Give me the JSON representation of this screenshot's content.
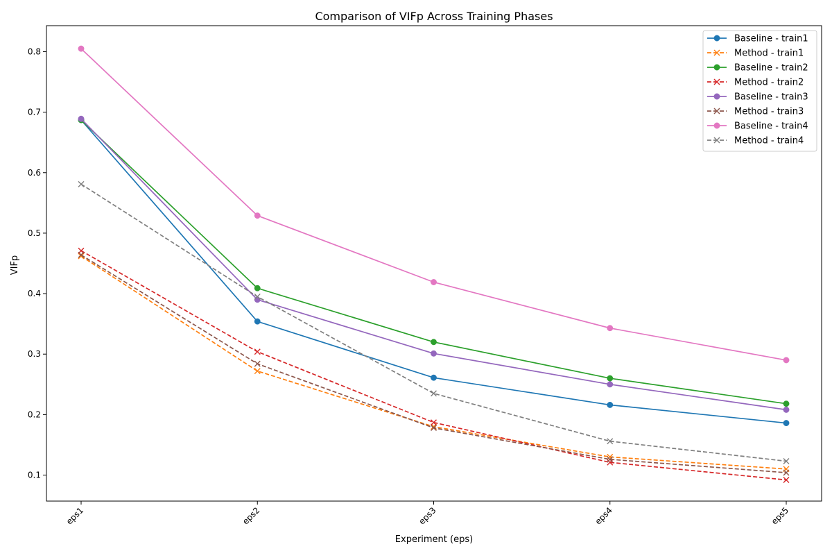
{
  "chart_data": {
    "type": "line",
    "title": "Comparison of VIFp Across Training Phases",
    "xlabel": "Experiment (eps)",
    "ylabel": "VIFp",
    "categories": [
      "eps1",
      "eps2",
      "eps3",
      "eps4",
      "eps5"
    ],
    "ylim": [
      0.057,
      0.843
    ],
    "yticks": [
      0.1,
      0.2,
      0.3,
      0.4,
      0.5,
      0.6,
      0.7,
      0.8
    ],
    "grid": false,
    "legend_position": "top-right",
    "series": [
      {
        "name": "Baseline - train1",
        "color": "#1f77b4",
        "style": "solid",
        "marker": "circle",
        "values": [
          0.687,
          0.354,
          0.261,
          0.216,
          0.186
        ]
      },
      {
        "name": "Method - train1",
        "color": "#ff7f0e",
        "style": "dashed",
        "marker": "x",
        "values": [
          0.462,
          0.272,
          0.18,
          0.13,
          0.11
        ]
      },
      {
        "name": "Baseline - train2",
        "color": "#2ca02c",
        "style": "solid",
        "marker": "circle",
        "values": [
          0.687,
          0.409,
          0.32,
          0.26,
          0.218
        ]
      },
      {
        "name": "Method - train2",
        "color": "#d62728",
        "style": "dashed",
        "marker": "x",
        "values": [
          0.471,
          0.304,
          0.187,
          0.121,
          0.092
        ]
      },
      {
        "name": "Baseline - train3",
        "color": "#9467bd",
        "style": "solid",
        "marker": "circle",
        "values": [
          0.689,
          0.39,
          0.301,
          0.25,
          0.208
        ]
      },
      {
        "name": "Method - train3",
        "color": "#8c564b",
        "style": "dashed",
        "marker": "x",
        "values": [
          0.464,
          0.284,
          0.178,
          0.126,
          0.104
        ]
      },
      {
        "name": "Baseline - train4",
        "color": "#e377c2",
        "style": "solid",
        "marker": "circle",
        "values": [
          0.805,
          0.529,
          0.419,
          0.343,
          0.29
        ]
      },
      {
        "name": "Method - train4",
        "color": "#7f7f7f",
        "style": "dashed",
        "marker": "x",
        "values": [
          0.581,
          0.395,
          0.235,
          0.156,
          0.123
        ]
      }
    ]
  }
}
